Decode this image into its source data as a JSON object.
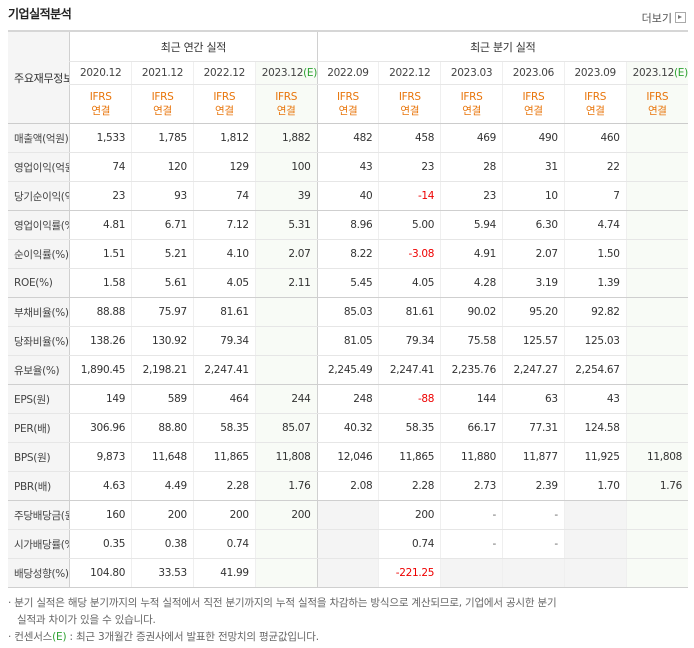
{
  "header": {
    "title": "기업실적분석",
    "more": "더보기"
  },
  "table": {
    "corner": "주요재무정보",
    "group_annual": "최근 연간 실적",
    "group_quarterly": "최근 분기 실적",
    "annual_count": 4,
    "periods": [
      {
        "label": "2020.12"
      },
      {
        "label": "2021.12"
      },
      {
        "label": "2022.12"
      },
      {
        "label": "2023.12",
        "estimate": "(E)"
      },
      {
        "label": "2022.09"
      },
      {
        "label": "2022.12"
      },
      {
        "label": "2023.03"
      },
      {
        "label": "2023.06"
      },
      {
        "label": "2023.09"
      },
      {
        "label": "2023.12",
        "estimate": "(E)"
      }
    ],
    "standards": [
      {
        "name": "IFRS",
        "basis": "연결"
      },
      {
        "name": "IFRS",
        "basis": "연결"
      },
      {
        "name": "IFRS",
        "basis": "연결"
      },
      {
        "name": "IFRS",
        "basis": "연결"
      },
      {
        "name": "IFRS",
        "basis": "연결"
      },
      {
        "name": "IFRS",
        "basis": "연결"
      },
      {
        "name": "IFRS",
        "basis": "연결"
      },
      {
        "name": "IFRS",
        "basis": "연결"
      },
      {
        "name": "IFRS",
        "basis": "연결"
      },
      {
        "name": "IFRS",
        "basis": "연결"
      }
    ],
    "rows": [
      {
        "label": "매출액(억원)",
        "values": [
          "1,533",
          "1,785",
          "1,812",
          "1,882",
          "482",
          "458",
          "469",
          "490",
          "460",
          null
        ]
      },
      {
        "label": "영업이익(억원)",
        "values": [
          "74",
          "120",
          "129",
          "100",
          "43",
          "23",
          "28",
          "31",
          "22",
          null
        ]
      },
      {
        "label": "당기순이익(억원)",
        "values": [
          "23",
          "93",
          "74",
          "39",
          "40",
          "-14",
          "23",
          "10",
          "7",
          null
        ]
      },
      {
        "label": "영업이익률(%)",
        "values": [
          "4.81",
          "6.71",
          "7.12",
          "5.31",
          "8.96",
          "5.00",
          "5.94",
          "6.30",
          "4.74",
          null
        ]
      },
      {
        "label": "순이익률(%)",
        "values": [
          "1.51",
          "5.21",
          "4.10",
          "2.07",
          "8.22",
          "-3.08",
          "4.91",
          "2.07",
          "1.50",
          null
        ]
      },
      {
        "label": "ROE(%)",
        "values": [
          "1.58",
          "5.61",
          "4.05",
          "2.11",
          "5.45",
          "4.05",
          "4.28",
          "3.19",
          "1.39",
          null
        ]
      },
      {
        "label": "부채비율(%)",
        "values": [
          "88.88",
          "75.97",
          "81.61",
          null,
          "85.03",
          "81.61",
          "90.02",
          "95.20",
          "92.82",
          null
        ]
      },
      {
        "label": "당좌비율(%)",
        "values": [
          "138.26",
          "130.92",
          "79.34",
          null,
          "81.05",
          "79.34",
          "75.58",
          "125.57",
          "125.03",
          null
        ]
      },
      {
        "label": "유보율(%)",
        "values": [
          "1,890.45",
          "2,198.21",
          "2,247.41",
          null,
          "2,245.49",
          "2,247.41",
          "2,235.76",
          "2,247.27",
          "2,254.67",
          null
        ]
      },
      {
        "label": "EPS(원)",
        "values": [
          "149",
          "589",
          "464",
          "244",
          "248",
          "-88",
          "144",
          "63",
          "43",
          null
        ]
      },
      {
        "label": "PER(배)",
        "values": [
          "306.96",
          "88.80",
          "58.35",
          "85.07",
          "40.32",
          "58.35",
          "66.17",
          "77.31",
          "124.58",
          null
        ]
      },
      {
        "label": "BPS(원)",
        "values": [
          "9,873",
          "11,648",
          "11,865",
          "11,808",
          "12,046",
          "11,865",
          "11,880",
          "11,877",
          "11,925",
          "11,808"
        ]
      },
      {
        "label": "PBR(배)",
        "values": [
          "4.63",
          "4.49",
          "2.28",
          "1.76",
          "2.08",
          "2.28",
          "2.73",
          "2.39",
          "1.70",
          "1.76"
        ]
      },
      {
        "label": "주당배당금(원)",
        "values": [
          "160",
          "200",
          "200",
          "200",
          null,
          "200",
          "-",
          "-",
          null,
          null
        ]
      },
      {
        "label": "시가배당률(%)",
        "values": [
          "0.35",
          "0.38",
          "0.74",
          null,
          null,
          "0.74",
          "-",
          "-",
          null,
          null
        ]
      },
      {
        "label": "배당성향(%)",
        "values": [
          "104.80",
          "33.53",
          "41.99",
          null,
          null,
          "-221.25",
          null,
          null,
          null,
          null
        ]
      }
    ]
  },
  "notes": {
    "quarterly": "분기 실적은 해당 분기까지의 누적 실적에서 직전 분기까지의 누적 실적을 차감하는 방식으로 계산되므로, 기업에서 공시한 분기 실적과 차이가 있을 수 있습니다.",
    "consensus_term": "컨센서스",
    "consensus_mark": "(E)",
    "consensus_text": " : 최근 3개월간 증권사에서 발표한 전망치의 평균값입니다."
  }
}
